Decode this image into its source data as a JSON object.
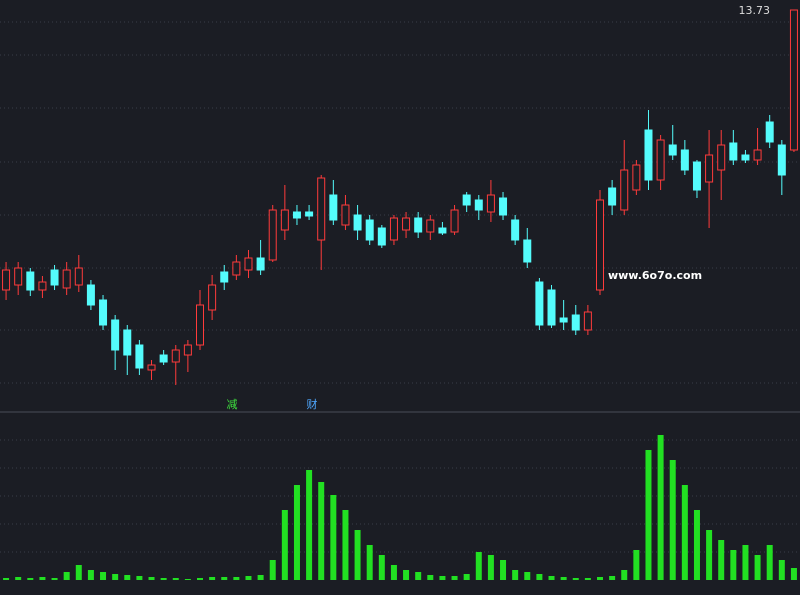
{
  "chart_data": {
    "type": "candlestick",
    "open": [
      10.93,
      10.98,
      11.11,
      10.93,
      11.13,
      10.95,
      10.98,
      10.98,
      10.83,
      10.63,
      10.53,
      10.38,
      10.13,
      10.28,
      10.21,
      10.28,
      10.38,
      10.73,
      11.11,
      11.08,
      11.13,
      11.25,
      11.23,
      11.53,
      11.71,
      11.71,
      11.43,
      11.88,
      11.58,
      11.68,
      11.63,
      11.55,
      11.43,
      11.53,
      11.65,
      11.51,
      11.55,
      11.51,
      11.88,
      11.83,
      11.71,
      11.85,
      11.63,
      11.43,
      11.01,
      10.93,
      10.65,
      10.68,
      10.53,
      10.93,
      11.95,
      11.73,
      11.93,
      12.53,
      12.03,
      12.38,
      12.33,
      12.21,
      12.01,
      12.13,
      12.4,
      12.28,
      12.23,
      12.61,
      12.38,
      12.33
    ],
    "high": [
      11.21,
      11.21,
      11.15,
      11.07,
      11.18,
      11.21,
      11.28,
      11.03,
      10.88,
      10.68,
      10.58,
      10.43,
      10.23,
      10.33,
      10.38,
      10.43,
      10.93,
      11.08,
      11.18,
      11.28,
      11.33,
      11.43,
      11.78,
      11.98,
      11.78,
      11.78,
      12.08,
      12.03,
      11.88,
      11.78,
      11.68,
      11.58,
      11.68,
      11.71,
      11.71,
      11.68,
      11.61,
      11.78,
      11.91,
      11.88,
      12.03,
      11.91,
      11.68,
      11.55,
      11.05,
      10.98,
      10.83,
      10.78,
      10.78,
      11.93,
      12.03,
      12.43,
      12.23,
      12.73,
      12.48,
      12.58,
      12.43,
      12.23,
      12.53,
      12.53,
      12.53,
      12.33,
      12.55,
      12.68,
      12.43,
      13.73
    ],
    "low": [
      10.83,
      10.88,
      10.87,
      10.85,
      10.93,
      10.88,
      10.91,
      10.73,
      10.53,
      10.13,
      10.08,
      10.08,
      10.03,
      10.18,
      9.98,
      10.11,
      10.33,
      10.63,
      10.93,
      11.03,
      11.05,
      11.08,
      11.21,
      11.43,
      11.58,
      11.63,
      11.13,
      11.58,
      11.53,
      11.43,
      11.38,
      11.35,
      11.38,
      11.45,
      11.45,
      11.43,
      11.48,
      11.48,
      11.71,
      11.63,
      11.61,
      11.63,
      11.38,
      11.15,
      10.53,
      10.55,
      10.53,
      10.48,
      10.48,
      10.88,
      11.68,
      11.68,
      11.88,
      11.93,
      11.93,
      12.23,
      12.08,
      11.85,
      11.55,
      11.83,
      12.18,
      12.2,
      12.18,
      12.35,
      11.88,
      12.31
    ],
    "close": [
      11.13,
      11.15,
      10.93,
      11.01,
      10.98,
      11.13,
      11.15,
      10.78,
      10.58,
      10.33,
      10.28,
      10.15,
      10.18,
      10.21,
      10.33,
      10.38,
      10.78,
      10.98,
      11.01,
      11.21,
      11.25,
      11.13,
      11.73,
      11.73,
      11.65,
      11.67,
      12.05,
      11.63,
      11.78,
      11.53,
      11.43,
      11.38,
      11.65,
      11.65,
      11.51,
      11.63,
      11.5,
      11.73,
      11.78,
      11.73,
      11.88,
      11.68,
      11.43,
      11.21,
      10.58,
      10.58,
      10.61,
      10.53,
      10.71,
      11.83,
      11.78,
      12.13,
      12.18,
      12.03,
      12.43,
      12.28,
      12.13,
      11.93,
      12.28,
      12.38,
      12.23,
      12.23,
      12.33,
      12.41,
      12.08,
      13.73
    ],
    "up_color": "#ff3b3b",
    "down_color": "#54fcfc",
    "ylim": [
      9.88,
      13.83
    ],
    "indicator": {
      "color": "#22e022",
      "values": [
        2,
        3,
        2,
        3,
        2,
        8,
        15,
        10,
        8,
        6,
        5,
        4,
        3,
        2,
        2,
        1,
        2,
        3,
        3,
        3,
        4,
        5,
        20,
        70,
        95,
        110,
        98,
        85,
        70,
        50,
        35,
        25,
        15,
        10,
        8,
        5,
        4,
        4,
        6,
        28,
        25,
        20,
        10,
        8,
        6,
        4,
        3,
        2,
        2,
        3,
        4,
        10,
        30,
        130,
        145,
        120,
        95,
        70,
        50,
        40,
        30,
        35,
        25,
        35,
        20,
        12
      ]
    },
    "annotations": [
      "减",
      "财"
    ],
    "watermark": "www.6o7o.com"
  }
}
